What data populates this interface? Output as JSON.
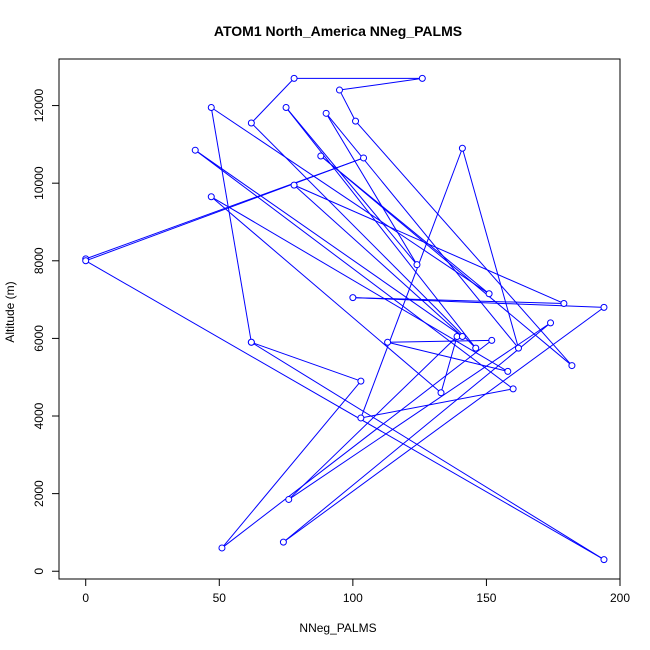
{
  "chart_data": {
    "type": "line",
    "title": "ATOM1 North_America NNeg_PALMS",
    "xlabel": "NNeg_PALMS",
    "ylabel": "Altitude (m)",
    "xlim": [
      -10,
      200
    ],
    "ylim": [
      -200,
      13200
    ],
    "x_ticks": [
      0,
      50,
      100,
      150,
      200
    ],
    "y_ticks": [
      0,
      2000,
      4000,
      6000,
      8000,
      10000,
      12000
    ],
    "grid": false,
    "legend": "none",
    "color": "#0000ff",
    "marker": "open-circle",
    "series": [
      {
        "points": [
          [
            0,
            8050
          ],
          [
            104,
            10650
          ],
          [
            0,
            8000
          ],
          [
            194,
            300
          ],
          [
            62,
            5900
          ],
          [
            103,
            4900
          ],
          [
            51,
            600
          ],
          [
            152,
            5950
          ],
          [
            113,
            5900
          ],
          [
            158,
            5150
          ],
          [
            47,
            9650
          ],
          [
            133,
            4600
          ],
          [
            139,
            6050
          ],
          [
            76,
            1850
          ],
          [
            174,
            6400
          ],
          [
            74,
            750
          ],
          [
            194,
            6800
          ],
          [
            100,
            7050
          ],
          [
            179,
            6900
          ],
          [
            78,
            9950
          ],
          [
            141,
            6050
          ],
          [
            41,
            10850
          ],
          [
            160,
            4700
          ],
          [
            103,
            3950
          ],
          [
            141,
            10900
          ],
          [
            162,
            5750
          ],
          [
            90,
            11800
          ],
          [
            124,
            7900
          ],
          [
            75,
            11950
          ],
          [
            146,
            5750
          ],
          [
            62,
            11550
          ],
          [
            78,
            12700
          ],
          [
            126,
            12700
          ],
          [
            95,
            12400
          ],
          [
            101,
            11600
          ],
          [
            182,
            5300
          ],
          [
            88,
            10700
          ],
          [
            151,
            7150
          ],
          [
            47,
            11950
          ],
          [
            62,
            5900
          ]
        ]
      }
    ]
  }
}
